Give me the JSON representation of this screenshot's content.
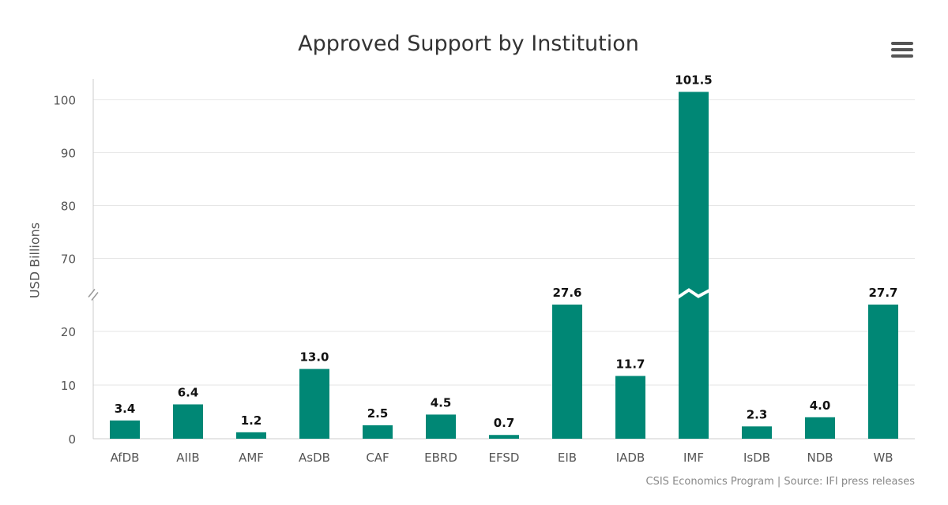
{
  "title": "Approved Support by Institution",
  "menu_icon": "hamburger-menu-icon",
  "credits": "CSIS Economics Program | Source: IFI press releases",
  "colors": {
    "bar": "#008775",
    "grid": "#e6e6e6",
    "axis_text": "#555555",
    "label_text": "#111111"
  },
  "chart_data": {
    "type": "bar",
    "title": "Approved Support by Institution",
    "ylabel": "USD Billions",
    "xlabel": "",
    "categories": [
      "AfDB",
      "AIIB",
      "AMF",
      "AsDB",
      "CAF",
      "EBRD",
      "EFSD",
      "EIB",
      "IADB",
      "IMF",
      "IsDB",
      "NDB",
      "WB"
    ],
    "values": [
      3.4,
      6.4,
      1.2,
      13.0,
      2.5,
      4.5,
      0.7,
      27.6,
      11.7,
      101.5,
      2.3,
      4.0,
      27.7
    ],
    "value_labels": [
      "3.4",
      "6.4",
      "1.2",
      "13.0",
      "2.5",
      "4.5",
      "0.7",
      "27.6",
      "11.7",
      "101.5",
      "2.3",
      "4.0",
      "27.7"
    ],
    "y_ticks": [
      0,
      10,
      20,
      70,
      80,
      90,
      100
    ],
    "y_tick_labels": [
      "0",
      "10",
      "20",
      "70",
      "80",
      "90",
      "100"
    ],
    "ylim": [
      0,
      105
    ],
    "axis_break": [
      25,
      65
    ],
    "grid": true,
    "legend": false
  }
}
